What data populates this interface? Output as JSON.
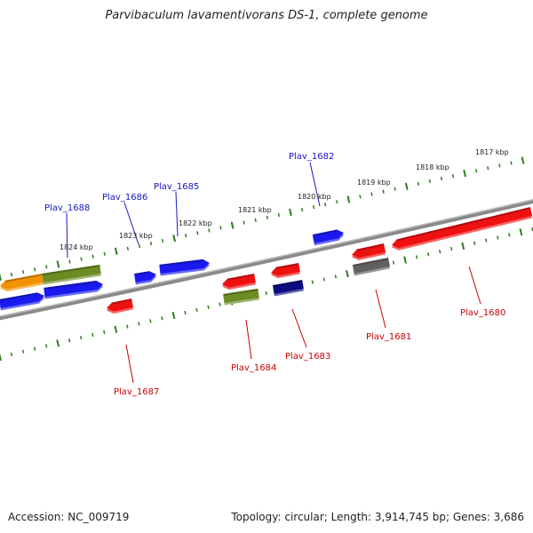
{
  "title": "Parvibaculum lavamentivorans DS-1, complete genome",
  "footer": {
    "accession": "Accession: NC_009719",
    "summary": "Topology: circular; Length: 3,914,745 bp; Genes: 3,686"
  },
  "colors": {
    "backbone": "#8a8a8a",
    "tick": "#2e7d1e",
    "plus_label": "#1515c8",
    "minus_label": "#cc0000",
    "red": "#ee1111",
    "blue": "#1a1aee",
    "green": "#6b8c23",
    "orange": "#f39200",
    "navy": "#0c0c80",
    "gray": "#606060"
  },
  "scale": {
    "labels": [
      "1817 kbp",
      "1818 kbp",
      "1819 kbp",
      "1820 kbp",
      "1821 kbp",
      "1822 kbp",
      "1823 kbp",
      "1824 kbp"
    ]
  },
  "gene_labels": {
    "plus": [
      "Plav_1688",
      "Plav_1686",
      "Plav_1685",
      "Plav_1682"
    ],
    "minus": [
      "Plav_1687",
      "Plav_1684",
      "Plav_1683",
      "Plav_1681",
      "Plav_1680"
    ]
  },
  "features": [
    {
      "color": "orange",
      "strand": "+",
      "track": 2
    },
    {
      "color": "green",
      "strand": "+",
      "track": 2
    },
    {
      "color": "blue",
      "strand": "+",
      "track": 1
    },
    {
      "color": "blue",
      "strand": "+",
      "track": 1
    },
    {
      "color": "blue",
      "strand": "+",
      "track": 1
    },
    {
      "color": "blue",
      "strand": "+",
      "track": 1
    },
    {
      "color": "blue",
      "strand": "+",
      "track": 2
    },
    {
      "color": "red",
      "strand": "-",
      "track": 2
    },
    {
      "color": "red",
      "strand": "-",
      "track": 1
    },
    {
      "color": "green",
      "strand": "-",
      "track": 2
    },
    {
      "color": "red",
      "strand": "-",
      "track": 1
    },
    {
      "color": "navy",
      "strand": "-",
      "track": 2
    },
    {
      "color": "red",
      "strand": "-",
      "track": 1
    },
    {
      "color": "gray",
      "strand": "-",
      "track": 2
    },
    {
      "color": "red",
      "strand": "-",
      "track": 1
    }
  ]
}
